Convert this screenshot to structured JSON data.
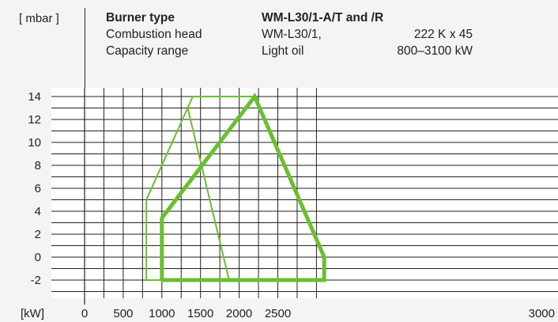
{
  "header": {
    "unit_label": "[ mbar ]",
    "rows": [
      {
        "label": "Burner type",
        "value1": "WM-L30/1-A/T and /R",
        "value2": ""
      },
      {
        "label": "Combustion head",
        "value1": "WM-L30/1,",
        "value2": "222 K x 45"
      },
      {
        "label": "Capacity range",
        "value1": "Light oil",
        "value2": "800–3100 kW"
      }
    ]
  },
  "colors": {
    "background": "#f4f4f4",
    "plot_background": "#ffffff",
    "grid": "#222222",
    "curve": "#6abf2e"
  },
  "chart_data": {
    "type": "line",
    "title": "",
    "xlabel": "[kW]",
    "ylabel": "[ mbar ]",
    "xlim": [
      -350,
      3150
    ],
    "ylim": [
      -3,
      14
    ],
    "x_ticks": [
      0,
      500,
      1000,
      1500,
      2000,
      2500,
      3000
    ],
    "x_tick_labels": [
      "0",
      "500",
      "1000",
      "1500",
      "2000",
      "2500",
      "3000"
    ],
    "y_ticks": [
      14,
      12,
      10,
      8,
      6,
      4,
      2,
      0,
      -2
    ],
    "y_tick_labels": [
      "14",
      "12",
      "10",
      "8",
      "6",
      "4",
      "2",
      "0",
      "-2"
    ],
    "grid": true,
    "series": [
      {
        "style": "thin",
        "x": [
          800,
          800,
          1400,
          2200,
          3100,
          3100,
          800
        ],
        "y": [
          -2,
          5,
          14,
          14,
          0,
          -2,
          -2
        ]
      },
      {
        "style": "thick",
        "x": [
          1000,
          1000,
          2200,
          3100,
          3100,
          1000
        ],
        "y": [
          -2,
          3.4,
          14,
          0,
          -2,
          -2
        ]
      },
      {
        "style": "thin",
        "x": [
          1330,
          1870
        ],
        "y": [
          13.1,
          -2
        ]
      }
    ]
  }
}
